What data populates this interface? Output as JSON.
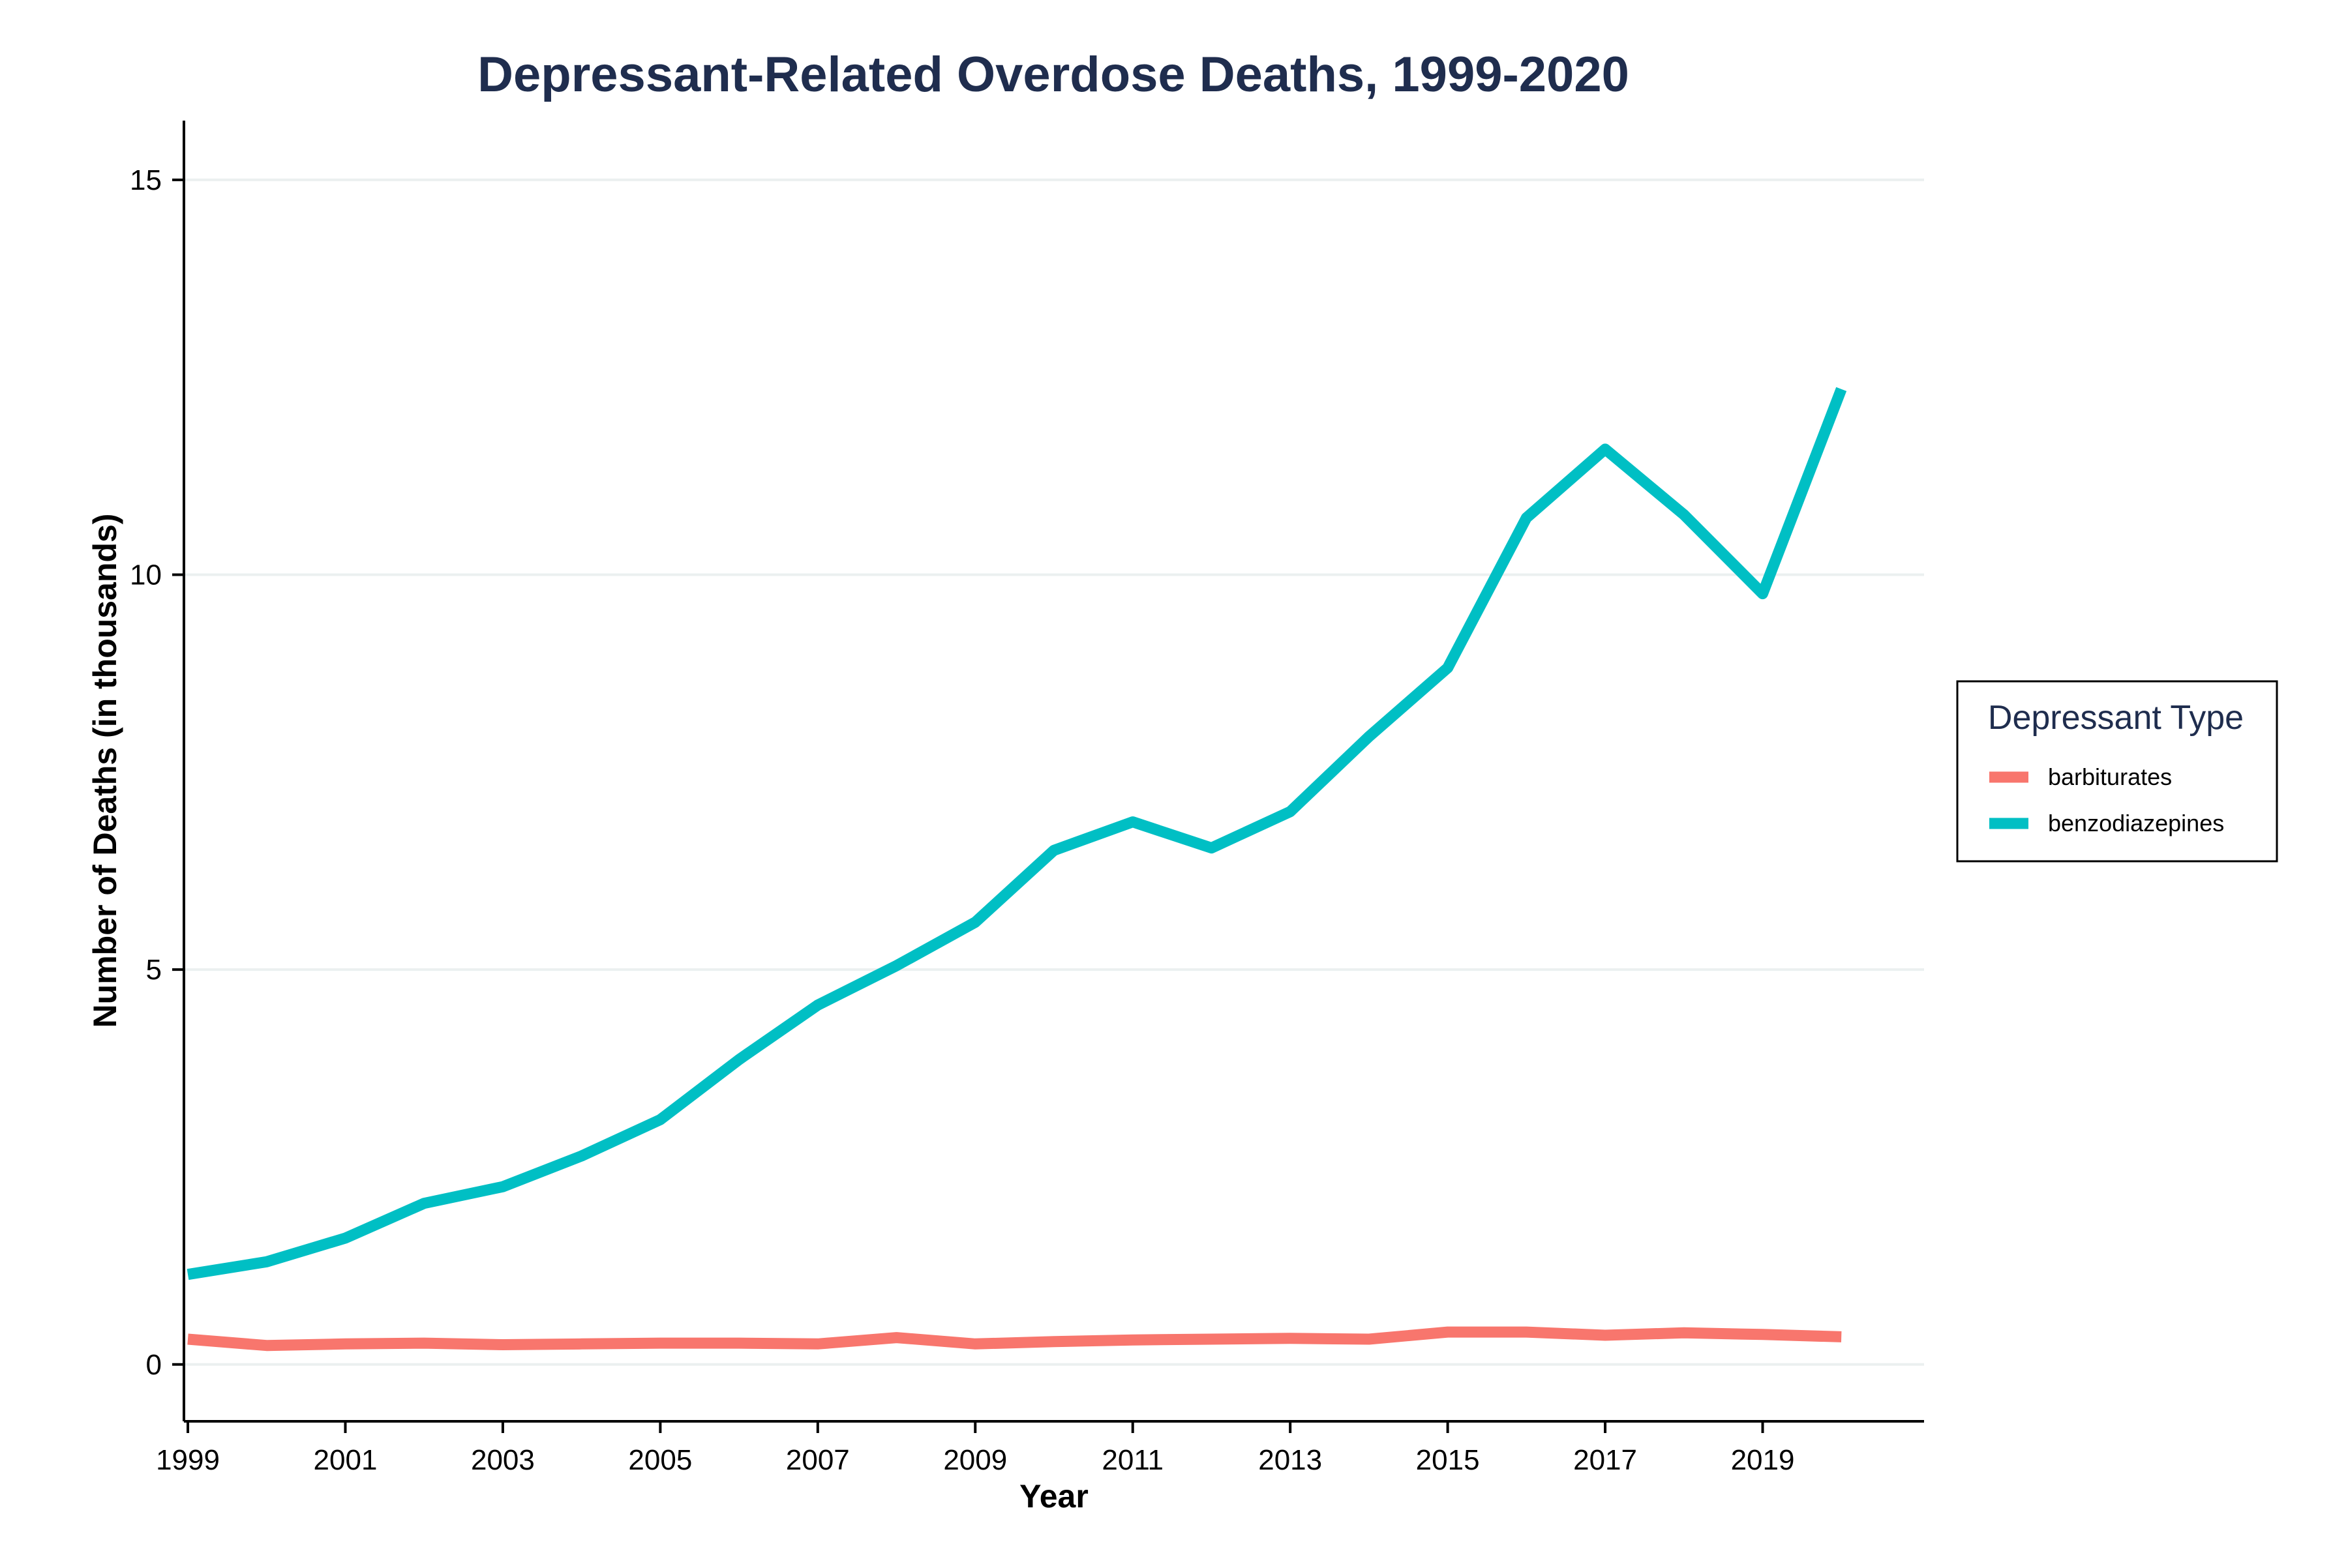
{
  "chart_data": {
    "type": "line",
    "title": "Depressant-Related Overdose Deaths, 1999-2020",
    "xlabel": "Year",
    "ylabel": "Number of Deaths (in thousands)",
    "x": [
      1999,
      2000,
      2001,
      2002,
      2003,
      2004,
      2005,
      2006,
      2007,
      2008,
      2009,
      2010,
      2011,
      2012,
      2013,
      2014,
      2015,
      2016,
      2017,
      2018,
      2019,
      2020
    ],
    "xticks": [
      1999,
      2001,
      2003,
      2005,
      2007,
      2009,
      2011,
      2013,
      2015,
      2017,
      2019
    ],
    "yticks": [
      0,
      5,
      10,
      15
    ],
    "xlim": [
      1998.95,
      2021.05
    ],
    "ylim": [
      -0.72,
      15.75
    ],
    "grid": "horizontal major",
    "legend": {
      "title": "Depressant Type",
      "position": "right"
    },
    "series": [
      {
        "name": "barbiturates",
        "color": "#f8766d",
        "values": [
          0.32,
          0.24,
          0.26,
          0.27,
          0.25,
          0.26,
          0.27,
          0.27,
          0.26,
          0.34,
          0.26,
          0.29,
          0.31,
          0.32,
          0.33,
          0.32,
          0.41,
          0.41,
          0.37,
          0.4,
          0.38,
          0.35
        ]
      },
      {
        "name": "benzodiazepines",
        "color": "#00bfc4",
        "values": [
          1.14,
          1.3,
          1.6,
          2.04,
          2.25,
          2.64,
          3.1,
          3.86,
          4.55,
          5.05,
          5.6,
          6.51,
          6.87,
          6.54,
          7.0,
          7.95,
          8.82,
          10.72,
          11.59,
          10.76,
          9.76,
          12.35
        ]
      }
    ]
  }
}
